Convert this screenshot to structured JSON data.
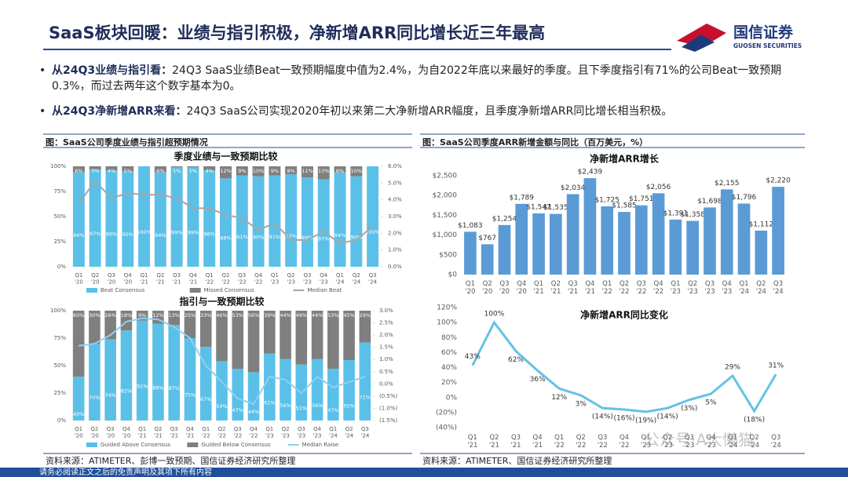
{
  "header": {
    "title": "SaaS板块回暖：业绩与指引积极，净新增ARR同比增长近三年最高",
    "logo_cn": "国信证券",
    "logo_en": "GUOSEN SECURITIES"
  },
  "bullets": [
    {
      "lead": "从24Q3业绩与指引看：",
      "text": "24Q3 SaaS业绩Beat一致预期幅度中值为2.4%，为自2022年底以来最好的季度。且下季度指引有71%的公司Beat一致预期0.3%，而过去两年这个数字基本为0。"
    },
    {
      "lead": "从24Q3净新增ARR来看：",
      "text": "24Q3 SaaS公司实现2020年初以来第二大净新增ARR幅度，且季度净新增ARR同比增长相当积极。"
    }
  ],
  "panels": [
    {
      "caption": "图：SaaS公司季度业绩与指引超预期情况",
      "source": "资料来源：ATIMETER、彭博一致预期、国信证券经济研究所整理"
    },
    {
      "caption": "图：SaaS公司季度ARR新增金额与同比（百万美元，%）",
      "source": "资料来源：ATIMETER、国信证券经济研究所整理"
    }
  ],
  "footer": "请务必阅读正文之后的免责声明及其项下所有内容",
  "watermark": "公众号·A大懒猫",
  "chart_data": [
    {
      "type": "stacked_bar",
      "title": "季度业绩与一致预期比较",
      "categories": [
        "Q1 '20",
        "Q2 '20",
        "Q3 '20",
        "Q4 '20",
        "Q1 '21",
        "Q2 '21",
        "Q3 '21",
        "Q4 '21",
        "Q1 '22",
        "Q2 '22",
        "Q3 '22",
        "Q4 '22",
        "Q1 '23",
        "Q2 '23",
        "Q3 '23",
        "Q4 '23",
        "Q1 '24",
        "Q2 '24",
        "Q3 '24"
      ],
      "series": [
        {
          "name": "Beat Consensus",
          "color": "#5bc0e8",
          "values": [
            94,
            97,
            96,
            95,
            100,
            94,
            99,
            99,
            96,
            88,
            91,
            90,
            91,
            92,
            89,
            87,
            94,
            90,
            100
          ],
          "value_labels": [
            "94%",
            "97%",
            "96%",
            "95%",
            "100%",
            "94%",
            "99%",
            "99%",
            "96%",
            "88%",
            "91%",
            "90%",
            "91%",
            "92%",
            "89%",
            "87%",
            "94%",
            "90%",
            "100%"
          ]
        },
        {
          "name": "Missed Consensus",
          "color": "#7f7f7f",
          "values": [
            6,
            3,
            4,
            5,
            0,
            6,
            1,
            1,
            4,
            12,
            9,
            10,
            9,
            8,
            11,
            13,
            6,
            10,
            0
          ],
          "value_labels": [
            "6%",
            "3%",
            "4%",
            "5%",
            null,
            "6%",
            "1%",
            "1%",
            "4%",
            "12%",
            "9%",
            "10%",
            "9%",
            "8%",
            "11%",
            "13%",
            "6%",
            "10%",
            null
          ]
        },
        {
          "name": "Median Beat",
          "color": "#a6a6a6",
          "axis": "y2",
          "values": [
            3.8,
            5.1,
            4.1,
            4.4,
            4.3,
            4.3,
            4.1,
            3.5,
            3.5,
            3.1,
            2.9,
            2.2,
            2.6,
            1.6,
            1.6,
            2.1,
            1.4,
            1.6,
            2.4
          ]
        }
      ],
      "ylim": [
        0,
        100
      ],
      "yticks": [
        {
          "value": 0,
          "label": "0%"
        },
        {
          "value": 25,
          "label": "25%"
        },
        {
          "value": 50,
          "label": "50%"
        },
        {
          "value": 75,
          "label": "75%"
        },
        {
          "value": 100,
          "label": "100%"
        }
      ],
      "y2lim": [
        0,
        6
      ],
      "y2ticks": [
        {
          "value": 0,
          "label": "0.0%"
        },
        {
          "value": 1,
          "label": "1.0%"
        },
        {
          "value": 2,
          "label": "2.0%"
        },
        {
          "value": 3,
          "label": "3.0%"
        },
        {
          "value": 4,
          "label": "4.0%"
        },
        {
          "value": 5,
          "label": "5.0%"
        },
        {
          "value": 6,
          "label": "6.0%"
        }
      ],
      "legend": "bottom"
    },
    {
      "type": "stacked_bar",
      "title": "指引与一致预期比较",
      "categories": [
        "Q1 '20",
        "Q2 '20",
        "Q3 '20",
        "Q4 '20",
        "Q1 '21",
        "Q2 '21",
        "Q3 '21",
        "Q4 '21",
        "Q1 '22",
        "Q2 '22",
        "Q3 '22",
        "Q4 '22",
        "Q1 '23",
        "Q2 '23",
        "Q3 '23",
        "Q4 '23",
        "Q1 '24",
        "Q2 '24",
        "Q3 '24"
      ],
      "series": [
        {
          "name": "Guided Above Consensus",
          "color": "#5bc0e8",
          "values": [
            40,
            70,
            74,
            82,
            91,
            88,
            87,
            75,
            67,
            54,
            47,
            44,
            61,
            56,
            51,
            56,
            47,
            55,
            71
          ],
          "value_labels": [
            "40%",
            "70%",
            "74%",
            "82%",
            "91%",
            "88%",
            "87%",
            "75%",
            "67%",
            "54%",
            "47%",
            "44%",
            "61%",
            "56%",
            "51%",
            "56%",
            "47%",
            "55%",
            "71%"
          ]
        },
        {
          "name": "Guided Below Consensus",
          "color": "#7f7f7f",
          "values": [
            60,
            30,
            26,
            18,
            9,
            12,
            13,
            25,
            33,
            46,
            53,
            56,
            39,
            44,
            49,
            44,
            53,
            45,
            29
          ],
          "value_labels": [
            "60%",
            "30%",
            "26%",
            "18%",
            "9%",
            "12%",
            "13%",
            "25%",
            "33%",
            "46%",
            "53%",
            "56%",
            "39%",
            "44%",
            "49%",
            "44%",
            "53%",
            "45%",
            "29%"
          ]
        },
        {
          "name": "Median Raise",
          "color": "#8fd0ee",
          "axis": "y2",
          "values": [
            1.56,
            1.65,
            2.0,
            2.55,
            2.69,
            2.64,
            2.33,
            1.88,
            0.75,
            0.08,
            -0.6,
            -0.83,
            0.3,
            0.17,
            -0.38,
            0.3,
            -0.15,
            0.08,
            0.3
          ]
        }
      ],
      "ylim": [
        0,
        100
      ],
      "yticks": [
        {
          "value": 0,
          "label": "0%"
        },
        {
          "value": 25,
          "label": "25%"
        },
        {
          "value": 50,
          "label": "50%"
        },
        {
          "value": 75,
          "label": "75%"
        },
        {
          "value": 100,
          "label": "100%"
        }
      ],
      "y2lim": [
        -1.5,
        3
      ],
      "y2ticks": [
        {
          "value": -1.5,
          "label": "(1.5%)"
        },
        {
          "value": -1,
          "label": "(1.0%)"
        },
        {
          "value": -0.5,
          "label": "(0.5%)"
        },
        {
          "value": 0,
          "label": "0.0%"
        },
        {
          "value": 0.5,
          "label": "0.5%"
        },
        {
          "value": 1,
          "label": "1.0%"
        },
        {
          "value": 1.5,
          "label": "1.5%"
        },
        {
          "value": 2,
          "label": "2.0%"
        },
        {
          "value": 2.5,
          "label": "2.5%"
        },
        {
          "value": 3,
          "label": "3.0%"
        }
      ],
      "legend": "bottom"
    },
    {
      "type": "bar",
      "title": "净新增ARR增长",
      "color": "#5b9bd5",
      "categories": [
        "Q1 '20",
        "Q2 '20",
        "Q3 '20",
        "Q4 '20",
        "Q1 '21",
        "Q2 '21",
        "Q3 '21",
        "Q4 '21",
        "Q1 '22",
        "Q2 '22",
        "Q3 '22",
        "Q4 '22",
        "Q1 '23",
        "Q2 '23",
        "Q3 '23",
        "Q4 '23",
        "Q1 '24",
        "Q2 '24",
        "Q3 '24"
      ],
      "values": [
        1083,
        767,
        1254,
        1789,
        1547,
        1535,
        2034,
        2439,
        1725,
        1585,
        1751,
        2056,
        1391,
        1358,
        1698,
        2155,
        1796,
        1112,
        2220
      ],
      "value_labels": [
        "$1,083",
        "$767",
        "$1,254",
        "$1,789",
        "$1,547",
        "$1,535",
        "$2,034",
        "$2,439",
        "$1,725",
        "$1,585",
        "$1,751",
        "$2,056",
        "$1,391",
        "$1,358",
        "$1,698",
        "$2,155",
        "$1,796",
        "$1,112",
        "$2,220"
      ],
      "ylim": [
        0,
        2500
      ],
      "yticks": [
        {
          "value": 0,
          "label": "$0"
        },
        {
          "value": 500,
          "label": "$500"
        },
        {
          "value": 1000,
          "label": "$1,000"
        },
        {
          "value": 1500,
          "label": "$1,500"
        },
        {
          "value": 2000,
          "label": "$2,000"
        },
        {
          "value": 2500,
          "label": "$2,500"
        }
      ]
    },
    {
      "type": "line",
      "title": "净新增ARR同比变化",
      "color": "#63c2e6",
      "categories": [
        "Q1 '21",
        "Q2 '21",
        "Q3 '21",
        "Q4 '21",
        "Q1 '22",
        "Q2 '22",
        "Q3 '22",
        "Q4 '22",
        "Q1 '23",
        "Q2 '23",
        "Q3 '23",
        "Q4 '23",
        "Q1 '24",
        "Q2 '24",
        "Q3 '24"
      ],
      "values": [
        43,
        100,
        62,
        36,
        12,
        3,
        -14,
        -16,
        -19,
        -14,
        -3,
        5,
        29,
        -18,
        31
      ],
      "value_labels": [
        "43%",
        "100%",
        "62%",
        "36%",
        "12%",
        "3%",
        "(14%)",
        "(16%)",
        "(19%)",
        "(14%)",
        "(3%)",
        "5%",
        "29%",
        "(18%)",
        "31%"
      ],
      "ylim": [
        -40,
        120
      ],
      "yticks": [
        {
          "value": -40,
          "label": "(40%)"
        },
        {
          "value": -20,
          "label": "(20%)"
        },
        {
          "value": 0,
          "label": "0%"
        },
        {
          "value": 20,
          "label": "20%"
        },
        {
          "value": 40,
          "label": "40%"
        },
        {
          "value": 60,
          "label": "60%"
        },
        {
          "value": 80,
          "label": "80%"
        },
        {
          "value": 100,
          "label": "100%"
        },
        {
          "value": 120,
          "label": "120%"
        }
      ]
    }
  ]
}
